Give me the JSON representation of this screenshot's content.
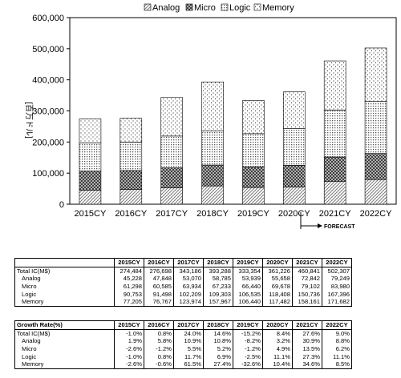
{
  "chart_data": {
    "type": "bar",
    "stacked": true,
    "categories": [
      "2015CY",
      "2016CY",
      "2017CY",
      "2018CY",
      "2019CY",
      "2020CY",
      "2021CY",
      "2022CY"
    ],
    "series": [
      {
        "name": "Analog",
        "values": [
          45228,
          47848,
          53070,
          58785,
          53939,
          55658,
          72842,
          79249
        ],
        "pattern": "diagonal-hatch"
      },
      {
        "name": "Micro",
        "values": [
          61298,
          60585,
          63934,
          67233,
          66440,
          69678,
          79102,
          83980
        ],
        "pattern": "crosshatch"
      },
      {
        "name": "Logic",
        "values": [
          90753,
          91498,
          102209,
          109303,
          106535,
          118408,
          150736,
          167396
        ],
        "pattern": "grid-dots"
      },
      {
        "name": "Memory",
        "values": [
          77205,
          76767,
          123974,
          157967,
          106440,
          117482,
          158161,
          171682
        ],
        "pattern": "sparse-dots"
      }
    ],
    "ylim": [
      0,
      600000
    ],
    "yticks": [
      "0",
      "100,000",
      "200,000",
      "300,000",
      "400,000",
      "500,000",
      "600,000"
    ],
    "ylabel": "[百万ドル]",
    "xlabel": "",
    "title": "",
    "legend_position": "top",
    "grid": false,
    "annotation": "FORECAST",
    "forecast_from_category": "2021CY"
  },
  "table_ic": {
    "header": [
      "",
      "2015CY",
      "2016CY",
      "2017CY",
      "2018CY",
      "2019CY",
      "2020CY",
      "2021CY",
      "2022CY"
    ],
    "rows": [
      {
        "label": "Total IC(M$)",
        "indent": false,
        "values": [
          "274,484",
          "276,698",
          "343,186",
          "393,288",
          "333,354",
          "361,226",
          "460,841",
          "502,307"
        ]
      },
      {
        "label": "Analog",
        "indent": true,
        "values": [
          "45,228",
          "47,848",
          "53,070",
          "58,785",
          "53,939",
          "55,658",
          "72,842",
          "79,249"
        ]
      },
      {
        "label": "Micro",
        "indent": true,
        "values": [
          "61,298",
          "60,585",
          "63,934",
          "67,233",
          "66,440",
          "69,678",
          "79,102",
          "83,980"
        ]
      },
      {
        "label": "Logic",
        "indent": true,
        "values": [
          "90,753",
          "91,498",
          "102,209",
          "109,303",
          "106,535",
          "118,408",
          "150,736",
          "167,396"
        ]
      },
      {
        "label": "Memory",
        "indent": true,
        "values": [
          "77,205",
          "76,767",
          "123,974",
          "157,967",
          "106,440",
          "117,482",
          "158,161",
          "171,682"
        ]
      }
    ]
  },
  "table_growth": {
    "header": [
      "Growth Rate(%)",
      "2015CY",
      "2016CY",
      "2017CY",
      "2018CY",
      "2019CY",
      "2020CY",
      "2021CY",
      "2022CY"
    ],
    "rows": [
      {
        "label": "Total IC(M$)",
        "indent": false,
        "values": [
          "-1.0%",
          "0.8%",
          "24.0%",
          "14.6%",
          "-15.2%",
          "8.4%",
          "27.6%",
          "9.0%"
        ]
      },
      {
        "label": "Analog",
        "indent": true,
        "values": [
          "1.9%",
          "5.8%",
          "10.9%",
          "10.8%",
          "-8.2%",
          "3.2%",
          "30.9%",
          "8.8%"
        ]
      },
      {
        "label": "Micro",
        "indent": true,
        "values": [
          "-2.6%",
          "-1.2%",
          "5.5%",
          "5.2%",
          "-1.2%",
          "4.9%",
          "13.5%",
          "6.2%"
        ]
      },
      {
        "label": "Logic",
        "indent": true,
        "values": [
          "-1.0%",
          "0.8%",
          "11.7%",
          "6.9%",
          "-2.5%",
          "11.1%",
          "27.3%",
          "11.1%"
        ]
      },
      {
        "label": "Memory",
        "indent": true,
        "values": [
          "-2.6%",
          "-0.6%",
          "61.5%",
          "27.4%",
          "-32.6%",
          "10.4%",
          "34.6%",
          "8.5%"
        ]
      }
    ]
  }
}
